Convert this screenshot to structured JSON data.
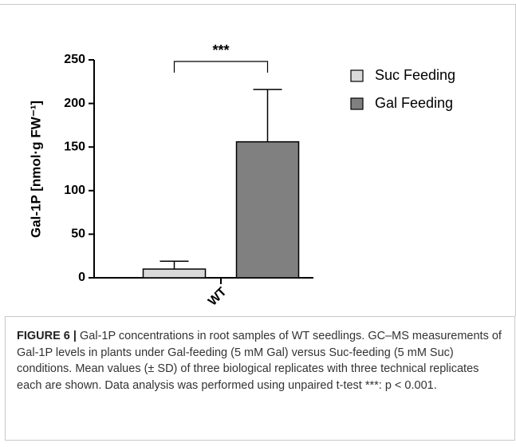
{
  "chart_data": {
    "type": "bar",
    "ylabel": "Gal-1P [nmol·g FW⁻¹]",
    "categories": [
      "WT"
    ],
    "series": [
      {
        "name": "Suc Feeding",
        "color": "#d9d9d9",
        "values": [
          10
        ],
        "errors": [
          9
        ]
      },
      {
        "name": "Gal Feeding",
        "color": "#808080",
        "values": [
          156
        ],
        "errors": [
          60
        ]
      }
    ],
    "annotation": "***",
    "ylim": [
      0,
      250
    ],
    "yticks": [
      0,
      50,
      100,
      150,
      200,
      250
    ],
    "legend": "right"
  },
  "caption": {
    "label": "FIGURE 6 |",
    "text": "Gal-1P concentrations in root samples of WT seedlings. GC–MS measurements of Gal-1P levels in plants under Gal-feeding (5 mM Gal) versus Suc-feeding (5 mM Suc) conditions. Mean values (± SD) of three biological replicates with three technical replicates each are shown. Data analysis was performed using unpaired t-test ***: p < 0.001."
  }
}
